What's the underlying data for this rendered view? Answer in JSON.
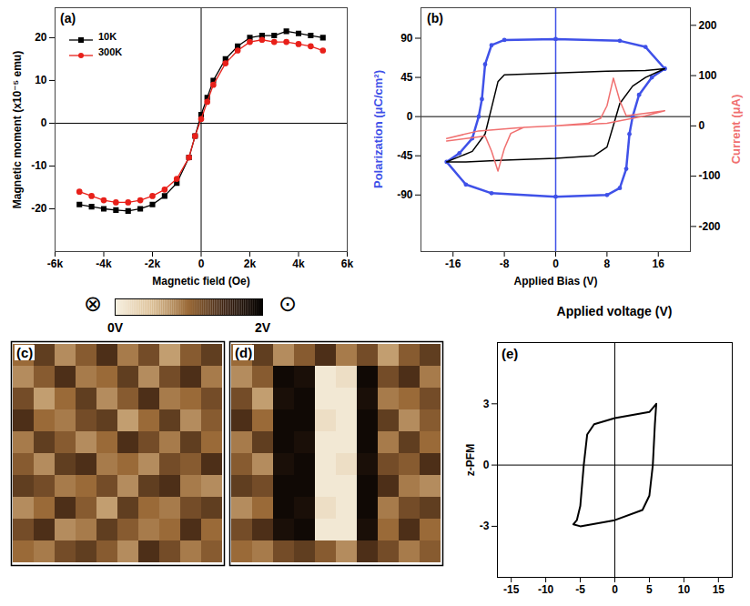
{
  "chart_data": [
    {
      "type": "line",
      "panel": "(a)",
      "xlabel": "Magnetic field (Oe)",
      "ylabel": "Magnetic moment (x10⁻⁵ emu)",
      "xlim": [
        -6000,
        6000
      ],
      "xticks": [
        {
          "value": -6000,
          "label": "-6k"
        },
        {
          "value": -4000,
          "label": "-4k"
        },
        {
          "value": -2000,
          "label": "-2k"
        },
        0,
        {
          "value": 2000,
          "label": "2k"
        },
        {
          "value": 4000,
          "label": "4k"
        },
        {
          "value": 6000,
          "label": "6k"
        }
      ],
      "ylim": [
        -30,
        27
      ],
      "yticks": [
        -20,
        -10,
        0,
        10,
        20
      ],
      "legend": "top-left",
      "x": [
        -5000,
        -4500,
        -4000,
        -3500,
        -3000,
        -2500,
        -2000,
        -1500,
        -1000,
        -500,
        -250,
        0,
        250,
        500,
        1000,
        1500,
        2000,
        2500,
        3000,
        3500,
        4000,
        4500,
        5000
      ],
      "series": [
        {
          "name": "10K",
          "color": "#000000",
          "marker": "square",
          "values": [
            -19,
            -19.5,
            -20,
            -20.3,
            -20.5,
            -20,
            -19,
            -17,
            -14,
            -8,
            -3,
            2,
            6,
            10,
            15,
            18,
            20,
            20.5,
            20.5,
            21.5,
            21,
            20.5,
            20
          ]
        },
        {
          "name": "300K",
          "color": "#e8201a",
          "marker": "circle",
          "values": [
            -16,
            -17,
            -18,
            -18.5,
            -18.5,
            -18,
            -17,
            -15.5,
            -13,
            -8,
            -3,
            1,
            5,
            9,
            14,
            17,
            19,
            19.5,
            19,
            19,
            18.5,
            18,
            17
          ]
        }
      ]
    },
    {
      "type": "line",
      "panel": "(b)",
      "xlabel": "Applied Bias (V)",
      "ylabel": "Polarization (μC/cm²)",
      "y2label": "Current (μA)",
      "xlim": [
        -21,
        21
      ],
      "xticks": [
        -16,
        -8,
        0,
        8,
        16
      ],
      "ylim": [
        -155,
        125
      ],
      "yticks": [
        -90,
        -45,
        0,
        45,
        90
      ],
      "y2lim": [
        -250,
        235
      ],
      "y2ticks": [
        -200,
        -100,
        0,
        100,
        200
      ],
      "series": [
        {
          "color": "#3f51e8",
          "marker": "circle",
          "x": [
            17,
            14,
            10,
            0,
            -8,
            -10,
            -11,
            -11.5,
            -12,
            -13,
            -15,
            -17,
            -14,
            -10,
            0,
            8,
            10,
            11,
            11.5,
            12,
            13,
            15,
            17
          ],
          "values": [
            55,
            80,
            87,
            89,
            88,
            82,
            60,
            20,
            0,
            -25,
            -42,
            -52,
            -78,
            -88,
            -92,
            -90,
            -82,
            -60,
            -20,
            0,
            25,
            45,
            55
          ]
        },
        {
          "color": "#000000",
          "x": [
            17,
            14,
            8,
            0,
            -8,
            -9,
            -10,
            -11,
            -13,
            -17,
            -14,
            -8,
            0,
            6,
            8,
            9,
            10,
            12,
            14,
            17
          ],
          "values": [
            55,
            53,
            52,
            50,
            48,
            40,
            10,
            -20,
            -40,
            -52,
            -52,
            -50,
            -48,
            -45,
            -35,
            -10,
            15,
            35,
            45,
            55
          ]
        },
        {
          "color": "#f07070",
          "axis": "y2",
          "x": [
            -17,
            -12,
            -5,
            0,
            5,
            7,
            8,
            9,
            10,
            11,
            14,
            17,
            14,
            8,
            0,
            -5,
            -7,
            -8,
            -9,
            -10,
            -11,
            -14,
            -17
          ],
          "values": [
            -25,
            -10,
            -3,
            0,
            5,
            15,
            40,
            95,
            50,
            20,
            25,
            30,
            20,
            5,
            0,
            -3,
            -15,
            -45,
            -90,
            -50,
            -20,
            -25,
            -30
          ]
        }
      ]
    },
    {
      "type": "heatmap",
      "panel": "(c)",
      "tick_labels": false,
      "cells": [
        [
          1.0,
          1.3,
          0.8,
          1.1,
          1.4,
          0.9,
          1.2,
          0.7,
          1.1,
          1.3
        ],
        [
          0.8,
          1.1,
          1.4,
          0.9,
          1.0,
          1.3,
          0.8,
          1.2,
          1.4,
          0.9
        ],
        [
          1.2,
          0.7,
          1.0,
          1.3,
          0.8,
          1.1,
          1.4,
          0.9,
          1.0,
          1.2
        ],
        [
          1.4,
          1.0,
          0.9,
          1.2,
          1.3,
          0.7,
          1.0,
          1.3,
          0.8,
          1.1
        ],
        [
          0.9,
          1.3,
          1.1,
          0.8,
          1.0,
          1.4,
          1.2,
          0.9,
          1.3,
          1.0
        ],
        [
          1.1,
          0.8,
          1.3,
          1.4,
          0.9,
          1.0,
          0.8,
          1.2,
          1.1,
          1.4
        ],
        [
          1.3,
          1.2,
          0.9,
          1.0,
          1.2,
          0.8,
          1.3,
          1.4,
          0.9,
          0.8
        ],
        [
          0.8,
          1.0,
          1.4,
          1.1,
          0.7,
          1.3,
          1.0,
          0.9,
          1.2,
          1.3
        ],
        [
          1.2,
          1.4,
          0.8,
          0.9,
          1.3,
          1.1,
          0.9,
          1.0,
          1.4,
          1.0
        ],
        [
          1.0,
          0.9,
          1.2,
          1.3,
          1.1,
          0.8,
          1.4,
          1.2,
          0.9,
          1.1
        ]
      ]
    },
    {
      "type": "heatmap",
      "panel": "(d)",
      "tick_labels": false,
      "cells": [
        [
          1.0,
          1.3,
          0.8,
          1.1,
          1.4,
          0.9,
          1.2,
          0.7,
          1.1,
          1.3
        ],
        [
          0.8,
          1.1,
          1.9,
          1.8,
          0.1,
          0.2,
          1.9,
          1.2,
          1.4,
          0.9
        ],
        [
          1.2,
          0.7,
          1.8,
          1.9,
          0.1,
          0.1,
          1.8,
          0.9,
          1.0,
          1.2
        ],
        [
          1.4,
          1.0,
          1.9,
          1.9,
          0.2,
          0.1,
          1.9,
          1.3,
          0.8,
          1.1
        ],
        [
          0.9,
          1.3,
          1.9,
          1.8,
          0.1,
          0.1,
          1.9,
          0.9,
          1.3,
          1.0
        ],
        [
          1.1,
          0.8,
          1.8,
          1.9,
          0.1,
          0.2,
          1.8,
          1.2,
          1.1,
          1.4
        ],
        [
          1.3,
          1.2,
          1.9,
          1.9,
          0.1,
          0.1,
          1.9,
          1.4,
          0.9,
          0.8
        ],
        [
          0.8,
          1.0,
          1.9,
          1.8,
          0.2,
          0.1,
          1.9,
          0.9,
          1.2,
          1.3
        ],
        [
          1.2,
          1.4,
          1.8,
          1.9,
          0.1,
          0.1,
          1.8,
          1.0,
          1.4,
          1.0
        ],
        [
          1.0,
          0.9,
          1.2,
          1.3,
          1.1,
          0.8,
          1.4,
          1.2,
          0.9,
          1.1
        ]
      ]
    },
    {
      "type": "line",
      "panel": "(e)",
      "xlabel": "Applied voltage (V)",
      "ylabel": "z-PFM",
      "xlim": [
        -17,
        17
      ],
      "xticks": [
        -15,
        -10,
        -5,
        0,
        5,
        10,
        15
      ],
      "ylim": [
        -5.5,
        6
      ],
      "yticks": [
        -3,
        0,
        3
      ],
      "series": [
        {
          "color": "#000000",
          "x": [
            6,
            5,
            0,
            -3,
            -4,
            -4.5,
            -5,
            -5.5,
            -6,
            -5,
            0,
            4,
            5,
            5.5,
            5.8,
            6
          ],
          "values": [
            3,
            2.6,
            2.3,
            2,
            1.5,
            0,
            -2,
            -2.7,
            -2.9,
            -3,
            -2.7,
            -2.2,
            -1.5,
            0,
            2,
            3
          ]
        }
      ]
    }
  ],
  "colorbar": {
    "range": [
      0,
      2
    ],
    "ticks": [
      {
        "value": 0,
        "label": "0V"
      },
      {
        "value": 2,
        "label": "2V"
      }
    ],
    "symbols": [
      "⊗",
      "⊙"
    ]
  }
}
